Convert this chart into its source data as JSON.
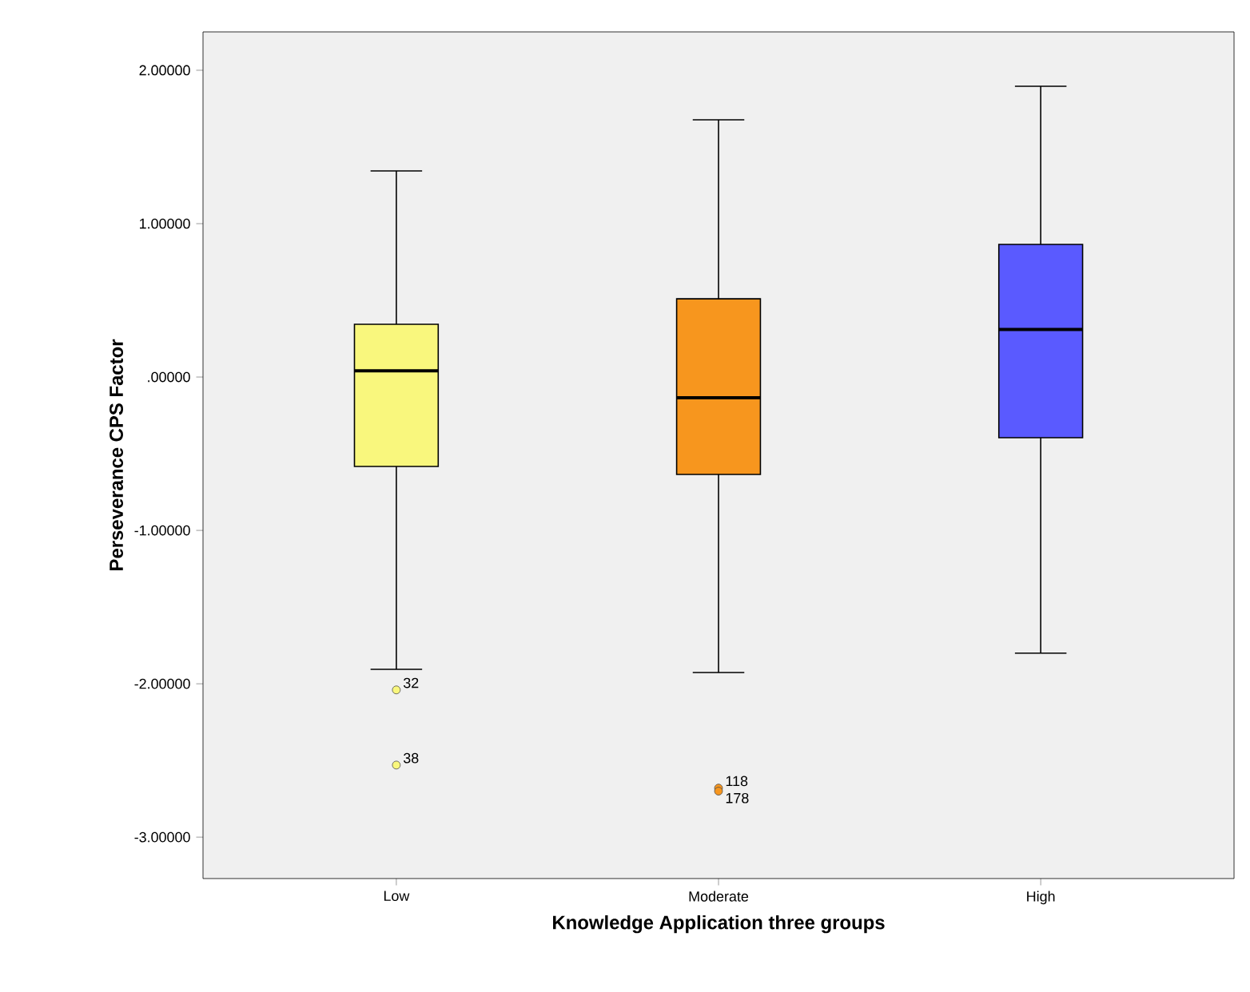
{
  "chart_data": {
    "type": "box",
    "xlabel": "Knowledge Application three groups",
    "ylabel": "Perseverance CPS Factor",
    "categories": [
      "Low",
      "Moderate",
      "High"
    ],
    "colors": [
      "#f9f77d",
      "#f7961e",
      "#5a5aff"
    ],
    "boxes": [
      {
        "low": -1.906,
        "q1": -0.583,
        "median": 0.04,
        "q3": 0.344,
        "high": 1.344,
        "outliers": [
          -2.04,
          -2.53
        ]
      },
      {
        "low": -1.927,
        "q1": -0.635,
        "median": -0.135,
        "q3": 0.51,
        "high": 1.677,
        "outliers": [
          -2.68,
          -2.7
        ]
      },
      {
        "low": -1.8,
        "q1": -0.396,
        "median": 0.31,
        "q3": 0.865,
        "high": 1.896
      }
    ],
    "ylim": [
      -3.27,
      2.25
    ],
    "yticks": [
      {
        "value": 2,
        "label": "2.00000"
      },
      {
        "value": 1,
        "label": "1.00000"
      },
      {
        "value": 0,
        "label": ".00000"
      },
      {
        "value": -1,
        "label": "-1.00000"
      },
      {
        "value": -2,
        "label": "-2.00000"
      },
      {
        "value": -3,
        "label": "-3.00000"
      }
    ],
    "annotations": [
      "32",
      "38",
      "118",
      "178"
    ]
  }
}
